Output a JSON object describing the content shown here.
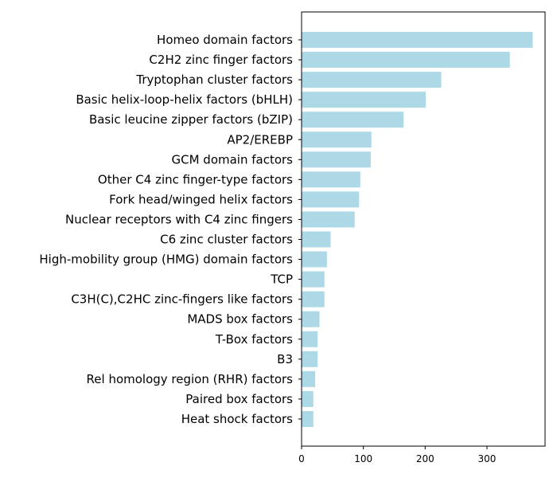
{
  "chart_data": {
    "type": "bar",
    "orientation": "horizontal",
    "categories": [
      "Homeo domain factors",
      "C2H2 zinc finger factors",
      "Tryptophan cluster factors",
      "Basic helix-loop-helix factors (bHLH)",
      "Basic leucine zipper factors (bZIP)",
      "AP2/EREBP",
      "GCM domain factors",
      "Other C4 zinc finger-type factors",
      "Fork head/winged helix factors",
      "Nuclear receptors with C4 zinc fingers",
      "C6 zinc cluster factors",
      "High-mobility group (HMG) domain factors",
      "TCP",
      "C3H(C),C2HC zinc-fingers like factors",
      "MADS box factors",
      "T-Box factors",
      "B3",
      "Rel homology region (RHR) factors",
      "Paired box factors",
      "Heat shock factors"
    ],
    "values": [
      374,
      337,
      226,
      201,
      165,
      113,
      112,
      95,
      93,
      86,
      47,
      41,
      37,
      37,
      29,
      26,
      26,
      22,
      19,
      19
    ],
    "xlim": [
      0,
      394
    ],
    "xticks": [
      "0",
      "100",
      "200",
      "300"
    ],
    "xlabel": "",
    "ylabel": "",
    "title": "",
    "grid": false,
    "bar_color": "#add8e6"
  }
}
